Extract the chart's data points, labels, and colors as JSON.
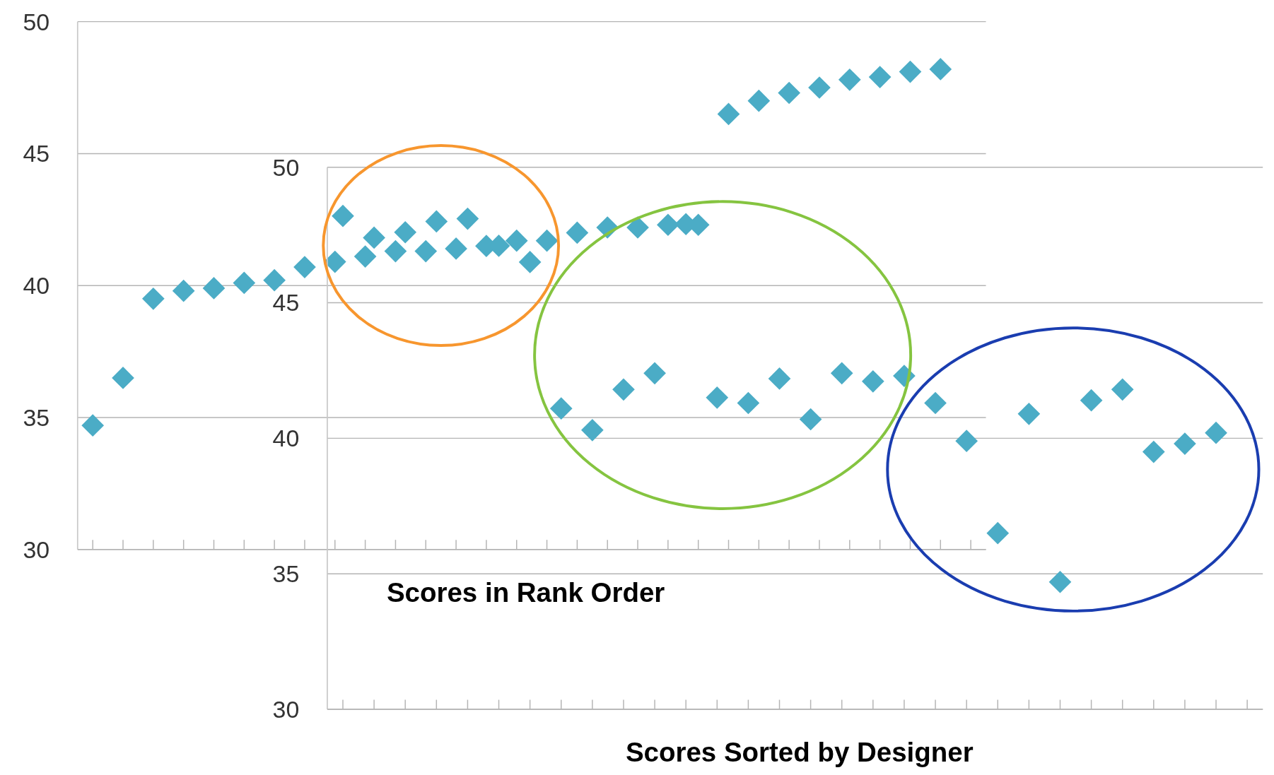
{
  "chart_data": [
    {
      "type": "scatter",
      "xlabel": "Scores in Rank Order",
      "categories": [
        null,
        null,
        null,
        null,
        null,
        null,
        null,
        null,
        null,
        null,
        null,
        null,
        null,
        null,
        null,
        null,
        null,
        null,
        null,
        null,
        null,
        null,
        null,
        null,
        null,
        null,
        null,
        null,
        null,
        null
      ],
      "series": [
        {
          "color": "#4bacc6",
          "values": [
            34.7,
            36.5,
            39.5,
            39.8,
            39.9,
            40.1,
            40.2,
            40.7,
            40.9,
            41.1,
            41.3,
            41.3,
            41.4,
            41.5,
            41.7,
            41.7,
            42.0,
            42.2,
            42.2,
            42.3,
            42.3,
            46.5,
            47.0,
            47.3,
            47.5,
            47.8,
            47.9,
            48.1,
            48.2,
            null
          ]
        }
      ],
      "ylim": [
        30,
        50
      ],
      "yticks": [
        30,
        35,
        40,
        45,
        50
      ],
      "grid": "y",
      "marker": "diamond",
      "tick_labels": "y"
    },
    {
      "type": "scatter",
      "xlabel": "Scores Sorted by Designer",
      "categories": [
        null,
        null,
        null,
        null,
        null,
        null,
        null,
        null,
        null,
        null,
        null,
        null,
        null,
        null,
        null,
        null,
        null,
        null,
        null,
        null,
        null,
        null,
        null,
        null,
        null,
        null,
        null,
        null,
        null,
        null
      ],
      "series": [
        {
          "color": "#4bacc6",
          "values": [
            48.2,
            47.4,
            47.6,
            48.0,
            48.1,
            47.1,
            46.5,
            41.1,
            40.3,
            41.8,
            42.4,
            47.9,
            41.5,
            41.3,
            42.2,
            40.7,
            42.4,
            42.1,
            42.3,
            41.3,
            39.9,
            36.5,
            40.9,
            34.7,
            41.4,
            41.8,
            39.5,
            39.8,
            40.2,
            null
          ]
        }
      ],
      "ylim": [
        30,
        50
      ],
      "yticks": [
        30,
        35,
        40,
        45,
        50
      ],
      "grid": "y",
      "marker": "diamond",
      "tick_labels": "y"
    }
  ]
}
